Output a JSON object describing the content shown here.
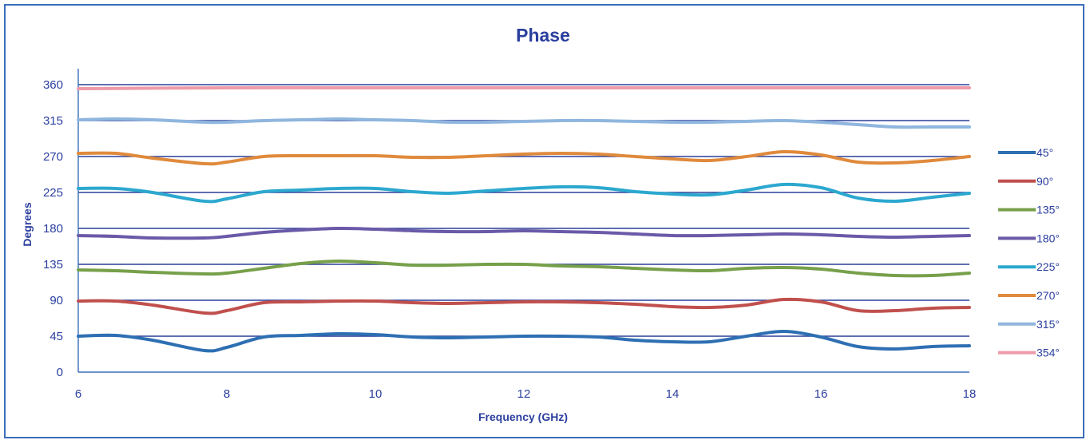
{
  "chart_data": {
    "type": "line",
    "title": "Phase",
    "xlabel": "Frequency (GHz)",
    "ylabel": "Degrees",
    "xlim": [
      6,
      18
    ],
    "ylim": [
      0,
      360
    ],
    "x_ticks": [
      "6",
      "8",
      "10",
      "12",
      "14",
      "16",
      "18"
    ],
    "y_ticks": [
      "0",
      "45",
      "90",
      "135",
      "180",
      "225",
      "270",
      "315",
      "360"
    ],
    "grid": true,
    "legend_position": "right",
    "series": [
      {
        "name": "45°",
        "color": "#2e6fb3",
        "x": [
          6,
          6.5,
          7,
          7.7,
          8,
          8.5,
          9,
          9.5,
          10,
          10.5,
          11,
          11.5,
          12,
          12.5,
          13,
          13.5,
          14,
          14.5,
          15,
          15.5,
          16,
          16.5,
          17,
          17.5,
          18
        ],
        "y": [
          45,
          46,
          40,
          27,
          31,
          44,
          46,
          48,
          47,
          44,
          43,
          44,
          45,
          45,
          44,
          40,
          38,
          38,
          45,
          51,
          44,
          32,
          29,
          32,
          33
        ]
      },
      {
        "name": "90°",
        "color": "#c0504d",
        "x": [
          6,
          6.5,
          7,
          7.7,
          8,
          8.5,
          9,
          9.5,
          10,
          10.5,
          11,
          11.5,
          12,
          12.5,
          13,
          13.5,
          14,
          14.5,
          15,
          15.5,
          16,
          16.5,
          17,
          17.5,
          18
        ],
        "y": [
          89,
          89,
          84,
          74,
          77,
          87,
          88,
          89,
          89,
          87,
          86,
          87,
          88,
          88,
          87,
          85,
          82,
          81,
          84,
          91,
          88,
          77,
          77,
          80,
          81
        ]
      },
      {
        "name": "135°",
        "color": "#77a04a",
        "x": [
          6,
          6.5,
          7,
          7.7,
          8,
          8.5,
          9,
          9.5,
          10,
          10.5,
          11,
          11.5,
          12,
          12.5,
          13,
          13.5,
          14,
          14.5,
          15,
          15.5,
          16,
          16.5,
          17,
          17.5,
          18
        ],
        "y": [
          128,
          127,
          125,
          123,
          124,
          130,
          136,
          139,
          137,
          134,
          134,
          135,
          135,
          133,
          132,
          130,
          128,
          127,
          130,
          131,
          129,
          124,
          121,
          121,
          124
        ]
      },
      {
        "name": "180°",
        "color": "#6a5aa8",
        "x": [
          6,
          6.5,
          7,
          7.7,
          8,
          8.5,
          9,
          9.5,
          10,
          10.5,
          11,
          11.5,
          12,
          12.5,
          13,
          13.5,
          14,
          14.5,
          15,
          15.5,
          16,
          16.5,
          17,
          17.5,
          18
        ],
        "y": [
          171,
          170,
          168,
          168,
          170,
          175,
          178,
          180,
          179,
          177,
          176,
          176,
          177,
          176,
          175,
          173,
          171,
          171,
          172,
          173,
          172,
          170,
          169,
          170,
          171
        ]
      },
      {
        "name": "225°",
        "color": "#2ca8cf",
        "x": [
          6,
          6.5,
          7,
          7.7,
          8,
          8.5,
          9,
          9.5,
          10,
          10.5,
          11,
          11.5,
          12,
          12.5,
          13,
          13.5,
          14,
          14.5,
          15,
          15.5,
          16,
          16.5,
          17,
          17.5,
          18
        ],
        "y": [
          230,
          230,
          225,
          214,
          217,
          226,
          228,
          230,
          230,
          226,
          224,
          227,
          230,
          232,
          231,
          226,
          223,
          222,
          228,
          235,
          231,
          218,
          214,
          219,
          224
        ]
      },
      {
        "name": "270°",
        "color": "#e08a3c",
        "x": [
          6,
          6.5,
          7,
          7.7,
          8,
          8.5,
          9,
          9.5,
          10,
          10.5,
          11,
          11.5,
          12,
          12.5,
          13,
          13.5,
          14,
          14.5,
          15,
          15.5,
          16,
          16.5,
          17,
          17.5,
          18
        ],
        "y": [
          274,
          274,
          268,
          261,
          263,
          270,
          271,
          271,
          271,
          269,
          269,
          271,
          273,
          274,
          273,
          270,
          267,
          265,
          270,
          276,
          272,
          263,
          262,
          265,
          270
        ]
      },
      {
        "name": "315°",
        "color": "#8fb6de",
        "x": [
          6,
          6.5,
          7,
          7.7,
          8,
          8.5,
          9,
          9.5,
          10,
          10.5,
          11,
          11.5,
          12,
          12.5,
          13,
          13.5,
          14,
          14.5,
          15,
          15.5,
          16,
          16.5,
          17,
          17.5,
          18
        ],
        "y": [
          316,
          317,
          316,
          313,
          313,
          315,
          316,
          317,
          316,
          315,
          313,
          313,
          314,
          315,
          315,
          314,
          313,
          313,
          314,
          315,
          313,
          310,
          307,
          307,
          307
        ]
      },
      {
        "name": "354°",
        "color": "#ee9aa8",
        "x": [
          6,
          8,
          10,
          12,
          14,
          16,
          18
        ],
        "y": [
          355,
          356,
          356,
          356,
          356,
          356,
          356
        ]
      }
    ]
  }
}
